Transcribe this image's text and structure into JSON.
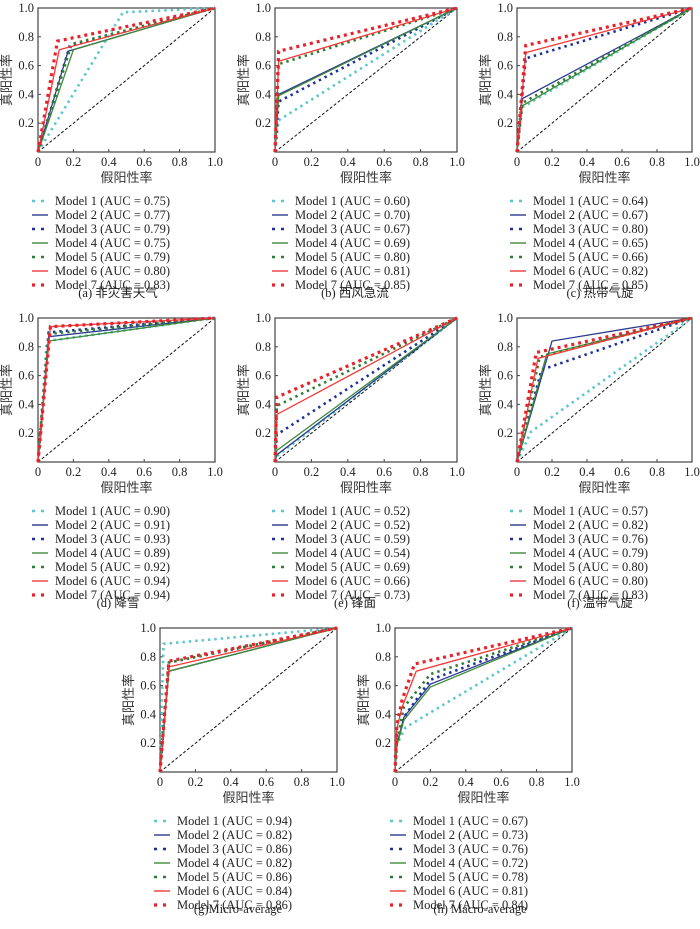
{
  "style": {
    "model_colors": [
      "#5bc6cc",
      "#2b3a8f",
      "#1f2f9a",
      "#3e8a3a",
      "#2e7d32",
      "#f03a3a",
      "#e8222a"
    ],
    "model_dash": [
      "dot",
      "solid",
      "dot",
      "solid",
      "dot",
      "solid",
      "dot"
    ],
    "diagonal_color": "#111111"
  },
  "chart_data": [
    {
      "type": "line",
      "caption": "(a) 非灾害天气",
      "xlabel": "假阳性率",
      "ylabel": "真阳性率",
      "xlim": [
        0,
        1
      ],
      "ylim": [
        0,
        1
      ],
      "xticks": [
        "0",
        "0.2",
        "0.4",
        "0.6",
        "0.8",
        "1.0"
      ],
      "yticks": [
        "0.2",
        "0.4",
        "0.6",
        "0.8",
        "1.0"
      ],
      "legend_position": "below",
      "series": [
        {
          "name": "Model 1 (AUC = 0.75)",
          "x": [
            0,
            0.48,
            1
          ],
          "y": [
            0,
            0.97,
            1
          ]
        },
        {
          "name": "Model 2 (AUC = 0.77)",
          "x": [
            0,
            0.17,
            1
          ],
          "y": [
            0,
            0.7,
            1
          ]
        },
        {
          "name": "Model 3 (AUC = 0.79)",
          "x": [
            0,
            0.18,
            1
          ],
          "y": [
            0,
            0.74,
            1
          ]
        },
        {
          "name": "Model 4 (AUC = 0.75)",
          "x": [
            0,
            0.2,
            1
          ],
          "y": [
            0,
            0.71,
            1
          ]
        },
        {
          "name": "Model 5 (AUC = 0.79)",
          "x": [
            0,
            0.19,
            1
          ],
          "y": [
            0,
            0.75,
            1
          ]
        },
        {
          "name": "Model 6 (AUC = 0.80)",
          "x": [
            0,
            0.12,
            1
          ],
          "y": [
            0,
            0.71,
            1
          ]
        },
        {
          "name": "Model 7 (AUC = 0.83)",
          "x": [
            0,
            0.11,
            1
          ],
          "y": [
            0,
            0.77,
            1
          ]
        }
      ]
    },
    {
      "type": "line",
      "caption": "(b) 西风急流",
      "xlabel": "假阳性率",
      "ylabel": "真阳性率",
      "xlim": [
        0,
        1
      ],
      "ylim": [
        0,
        1
      ],
      "xticks": [
        "0",
        "0.2",
        "0.4",
        "0.6",
        "0.8",
        "1.0"
      ],
      "yticks": [
        "0.2",
        "0.4",
        "0.6",
        "0.8",
        "1.0"
      ],
      "legend_position": "below",
      "series": [
        {
          "name": "Model 1 (AUC = 0.60)",
          "x": [
            0,
            0.02,
            1
          ],
          "y": [
            0,
            0.22,
            1
          ]
        },
        {
          "name": "Model 2 (AUC = 0.70)",
          "x": [
            0,
            0.02,
            1
          ],
          "y": [
            0,
            0.4,
            1
          ]
        },
        {
          "name": "Model 3 (AUC = 0.67)",
          "x": [
            0,
            0.02,
            1
          ],
          "y": [
            0,
            0.35,
            1
          ]
        },
        {
          "name": "Model 4 (AUC = 0.69)",
          "x": [
            0,
            0.02,
            1
          ],
          "y": [
            0,
            0.39,
            1
          ]
        },
        {
          "name": "Model 5 (AUC = 0.80)",
          "x": [
            0,
            0.02,
            1
          ],
          "y": [
            0,
            0.61,
            1
          ]
        },
        {
          "name": "Model 6 (AUC = 0.81)",
          "x": [
            0,
            0.02,
            1
          ],
          "y": [
            0,
            0.63,
            1
          ]
        },
        {
          "name": "Model 7 (AUC = 0.85)",
          "x": [
            0,
            0.02,
            1
          ],
          "y": [
            0,
            0.7,
            1
          ]
        }
      ]
    },
    {
      "type": "line",
      "caption": "(c) 热带气旋",
      "xlabel": "假阳性率",
      "ylabel": "真阳性率",
      "xlim": [
        0,
        1
      ],
      "ylim": [
        0,
        1
      ],
      "xticks": [
        "0",
        "0.2",
        "0.4",
        "0.6",
        "0.8",
        "1.0"
      ],
      "yticks": [
        "0.2",
        "0.4",
        "0.6",
        "0.8",
        "1.0"
      ],
      "legend_position": "below",
      "series": [
        {
          "name": "Model 1 (AUC = 0.64)",
          "x": [
            0,
            0.03,
            1
          ],
          "y": [
            0,
            0.31,
            1
          ]
        },
        {
          "name": "Model 2 (AUC = 0.67)",
          "x": [
            0,
            0.03,
            1
          ],
          "y": [
            0,
            0.37,
            1
          ]
        },
        {
          "name": "Model 3 (AUC = 0.80)",
          "x": [
            0,
            0.05,
            1
          ],
          "y": [
            0,
            0.65,
            1
          ]
        },
        {
          "name": "Model 4 (AUC = 0.65)",
          "x": [
            0,
            0.03,
            1
          ],
          "y": [
            0,
            0.32,
            1
          ]
        },
        {
          "name": "Model 5 (AUC = 0.66)",
          "x": [
            0,
            0.03,
            1
          ],
          "y": [
            0,
            0.34,
            1
          ]
        },
        {
          "name": "Model 6 (AUC = 0.82)",
          "x": [
            0,
            0.05,
            1
          ],
          "y": [
            0,
            0.69,
            1
          ]
        },
        {
          "name": "Model 7 (AUC = 0.85)",
          "x": [
            0,
            0.05,
            1
          ],
          "y": [
            0,
            0.74,
            1
          ]
        }
      ]
    },
    {
      "type": "line",
      "caption": "(d) 降雪",
      "xlabel": "假阳性率",
      "ylabel": "真阳性率",
      "xlim": [
        0,
        1
      ],
      "ylim": [
        0,
        1
      ],
      "xticks": [
        "0",
        "0.2",
        "0.4",
        "0.6",
        "0.8",
        "1.0"
      ],
      "yticks": [
        "0.2",
        "0.4",
        "0.6",
        "0.8",
        "1.0"
      ],
      "legend_position": "below",
      "series": [
        {
          "name": "Model 1 (AUC = 0.90)",
          "x": [
            0,
            0.05,
            1
          ],
          "y": [
            0,
            0.84,
            1
          ]
        },
        {
          "name": "Model 2 (AUC = 0.91)",
          "x": [
            0,
            0.06,
            1
          ],
          "y": [
            0,
            0.87,
            1
          ]
        },
        {
          "name": "Model 3 (AUC = 0.93)",
          "x": [
            0,
            0.06,
            1
          ],
          "y": [
            0,
            0.9,
            1
          ]
        },
        {
          "name": "Model 4 (AUC = 0.89)",
          "x": [
            0,
            0.06,
            1
          ],
          "y": [
            0,
            0.84,
            1
          ]
        },
        {
          "name": "Model 5 (AUC = 0.92)",
          "x": [
            0,
            0.06,
            1
          ],
          "y": [
            0,
            0.89,
            1
          ]
        },
        {
          "name": "Model 6 (AUC = 0.94)",
          "x": [
            0,
            0.07,
            1
          ],
          "y": [
            0,
            0.94,
            1
          ]
        },
        {
          "name": "Model 7 (AUC = 0.94)",
          "x": [
            0,
            0.07,
            1
          ],
          "y": [
            0,
            0.94,
            1
          ]
        }
      ]
    },
    {
      "type": "line",
      "caption": "(e) 锋面",
      "xlabel": "假阳性率",
      "ylabel": "真阳性率",
      "xlim": [
        0,
        1
      ],
      "ylim": [
        0,
        1
      ],
      "xticks": [
        "0",
        "0.2",
        "0.4",
        "0.6",
        "0.8",
        "1.0"
      ],
      "yticks": [
        "0.2",
        "0.4",
        "0.6",
        "0.8",
        "1.0"
      ],
      "legend_position": "below",
      "series": [
        {
          "name": "Model 1 (AUC = 0.52)",
          "x": [
            0,
            0.01,
            1
          ],
          "y": [
            0,
            0.04,
            1
          ]
        },
        {
          "name": "Model 2 (AUC = 0.52)",
          "x": [
            0,
            0.01,
            1
          ],
          "y": [
            0,
            0.05,
            1
          ]
        },
        {
          "name": "Model 3 (AUC = 0.59)",
          "x": [
            0,
            0.01,
            1
          ],
          "y": [
            0,
            0.19,
            1
          ]
        },
        {
          "name": "Model 4 (AUC = 0.54)",
          "x": [
            0,
            0.01,
            1
          ],
          "y": [
            0,
            0.08,
            1
          ]
        },
        {
          "name": "Model 5 (AUC = 0.69)",
          "x": [
            0,
            0.01,
            1
          ],
          "y": [
            0,
            0.39,
            1
          ]
        },
        {
          "name": "Model 6 (AUC = 0.66)",
          "x": [
            0,
            0.01,
            1
          ],
          "y": [
            0,
            0.33,
            1
          ]
        },
        {
          "name": "Model 7 (AUC = 0.73)",
          "x": [
            0,
            0.01,
            1
          ],
          "y": [
            0,
            0.45,
            1
          ]
        }
      ]
    },
    {
      "type": "line",
      "caption": "(f) 温带气旋",
      "xlabel": "假阳性率",
      "ylabel": "真阳性率",
      "xlim": [
        0,
        1
      ],
      "ylim": [
        0,
        1
      ],
      "xticks": [
        "0",
        "0.2",
        "0.4",
        "0.6",
        "0.8",
        "1.0"
      ],
      "yticks": [
        "0.2",
        "0.4",
        "0.6",
        "0.8",
        "1.0"
      ],
      "legend_position": "below",
      "series": [
        {
          "name": "Model 1 (AUC = 0.57)",
          "x": [
            0,
            0.08,
            1
          ],
          "y": [
            0,
            0.21,
            1
          ]
        },
        {
          "name": "Model 2 (AUC = 0.82)",
          "x": [
            0,
            0.2,
            1
          ],
          "y": [
            0,
            0.84,
            1
          ]
        },
        {
          "name": "Model 3 (AUC = 0.76)",
          "x": [
            0,
            0.14,
            1
          ],
          "y": [
            0,
            0.64,
            1
          ]
        },
        {
          "name": "Model 4 (AUC = 0.79)",
          "x": [
            0,
            0.17,
            1
          ],
          "y": [
            0,
            0.75,
            1
          ]
        },
        {
          "name": "Model 5 (AUC = 0.80)",
          "x": [
            0,
            0.13,
            1
          ],
          "y": [
            0,
            0.73,
            1
          ]
        },
        {
          "name": "Model 6 (AUC = 0.80)",
          "x": [
            0,
            0.12,
            1
          ],
          "y": [
            0,
            0.72,
            1
          ]
        },
        {
          "name": "Model 7 (AUC = 0.83)",
          "x": [
            0,
            0.11,
            1
          ],
          "y": [
            0,
            0.76,
            1
          ]
        }
      ]
    },
    {
      "type": "line",
      "caption": "(g)Micro-average",
      "xlabel": "假阳性率",
      "ylabel": "真阳性率",
      "xlim": [
        0,
        1
      ],
      "ylim": [
        0,
        1
      ],
      "xticks": [
        "0",
        "0.2",
        "0.4",
        "0.6",
        "0.8",
        "1.0"
      ],
      "yticks": [
        "0.2",
        "0.4",
        "0.6",
        "0.8",
        "1.0"
      ],
      "legend_position": "below",
      "series": [
        {
          "name": "Model 1 (AUC = 0.94)",
          "x": [
            0,
            0.02,
            1
          ],
          "y": [
            0,
            0.89,
            1
          ]
        },
        {
          "name": "Model 2 (AUC = 0.82)",
          "x": [
            0,
            0.05,
            1
          ],
          "y": [
            0,
            0.7,
            1
          ]
        },
        {
          "name": "Model 3 (AUC = 0.86)",
          "x": [
            0,
            0.05,
            1
          ],
          "y": [
            0,
            0.76,
            1
          ]
        },
        {
          "name": "Model 4 (AUC = 0.82)",
          "x": [
            0,
            0.05,
            1
          ],
          "y": [
            0,
            0.7,
            1
          ]
        },
        {
          "name": "Model 5 (AUC = 0.86)",
          "x": [
            0,
            0.05,
            1
          ],
          "y": [
            0,
            0.76,
            1
          ]
        },
        {
          "name": "Model 6 (AUC = 0.84)",
          "x": [
            0,
            0.05,
            1
          ],
          "y": [
            0,
            0.73,
            1
          ]
        },
        {
          "name": "Model 7 (AUC = 0.86)",
          "x": [
            0,
            0.05,
            1
          ],
          "y": [
            0,
            0.77,
            1
          ]
        }
      ]
    },
    {
      "type": "line",
      "caption": "(h) Macro-average",
      "xlabel": "假阳性率",
      "ylabel": "真阳性率",
      "xlim": [
        0,
        1
      ],
      "ylim": [
        0,
        1
      ],
      "xticks": [
        "0",
        "0.2",
        "0.4",
        "0.6",
        "0.8",
        "1.0"
      ],
      "yticks": [
        "0.2",
        "0.4",
        "0.6",
        "0.8",
        "1.0"
      ],
      "legend_position": "below",
      "series": [
        {
          "name": "Model 1 (AUC = 0.67)",
          "x": [
            0,
            0.01,
            0.06,
            1
          ],
          "y": [
            0,
            0.19,
            0.31,
            1
          ]
        },
        {
          "name": "Model 2 (AUC = 0.73)",
          "x": [
            0,
            0.01,
            0.05,
            0.2,
            1
          ],
          "y": [
            0,
            0.19,
            0.38,
            0.61,
            1
          ]
        },
        {
          "name": "Model 3 (AUC = 0.76)",
          "x": [
            0,
            0.01,
            0.05,
            0.2,
            1
          ],
          "y": [
            0,
            0.19,
            0.38,
            0.64,
            1
          ]
        },
        {
          "name": "Model 4 (AUC = 0.72)",
          "x": [
            0,
            0.01,
            0.05,
            0.2,
            1
          ],
          "y": [
            0,
            0.18,
            0.36,
            0.59,
            1
          ]
        },
        {
          "name": "Model 5 (AUC = 0.78)",
          "x": [
            0,
            0.01,
            0.05,
            0.2,
            1
          ],
          "y": [
            0,
            0.2,
            0.45,
            0.68,
            1
          ]
        },
        {
          "name": "Model 6 (AUC = 0.81)",
          "x": [
            0,
            0.01,
            0.04,
            0.12,
            1
          ],
          "y": [
            0,
            0.3,
            0.45,
            0.7,
            1
          ]
        },
        {
          "name": "Model 7 (AUC = 0.84)",
          "x": [
            0,
            0.01,
            0.04,
            0.11,
            1
          ],
          "y": [
            0,
            0.32,
            0.5,
            0.75,
            1
          ]
        }
      ]
    }
  ]
}
